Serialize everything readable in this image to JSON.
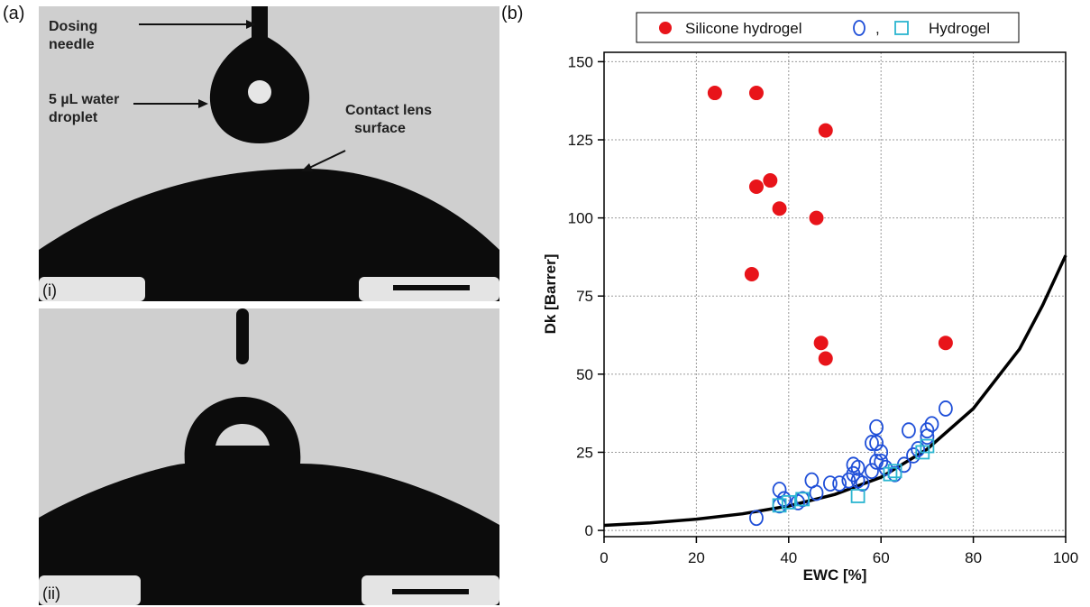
{
  "panel_a": {
    "label": "(a)",
    "photo_i": {
      "sub_label": "(i)",
      "annotations": {
        "needle_line1": "Dosing",
        "needle_line2": "needle",
        "droplet_line1": "5 µL water",
        "droplet_line2": "droplet",
        "surface_line1": "Contact lens",
        "surface_line2": "surface"
      }
    },
    "photo_ii": {
      "sub_label": "(ii)"
    }
  },
  "panel_b": {
    "label": "(b)"
  },
  "chart_data": {
    "type": "scatter",
    "xlabel": "EWC [%]",
    "ylabel": "Dk [Barrer]",
    "xlim": [
      0,
      100
    ],
    "ylim": [
      -2,
      153
    ],
    "x_ticks": [
      0,
      20,
      40,
      60,
      80,
      100
    ],
    "y_ticks": [
      0,
      25,
      50,
      75,
      100,
      125,
      150
    ],
    "grid": true,
    "legend": {
      "placement": "top",
      "entries": [
        "Silicone hydrogel",
        ",",
        "Hydrogel"
      ]
    },
    "colors": {
      "silicone": "#e8141a",
      "circle": "#1f4fd8",
      "square": "#2bb5d0",
      "curve": "#000000"
    },
    "series": [
      {
        "name": "Silicone hydrogel",
        "marker": "filled-circle",
        "x": [
          24,
          33,
          48,
          33,
          36,
          38,
          46,
          32,
          47,
          48,
          74
        ],
        "y": [
          140,
          140,
          128,
          110,
          112,
          103,
          100,
          82,
          60,
          55,
          60
        ]
      },
      {
        "marker": "open-circle",
        "x": [
          33,
          38,
          38,
          39,
          42,
          43,
          45,
          46,
          49,
          51,
          53,
          54,
          54,
          55,
          55,
          56,
          58,
          58,
          59,
          59,
          59,
          60,
          60,
          61,
          63,
          65,
          66,
          67,
          68,
          70,
          70,
          71,
          74
        ],
        "y": [
          4,
          8,
          13,
          10,
          9,
          10,
          16,
          12,
          15,
          15,
          16,
          21,
          18,
          20,
          16,
          15,
          28,
          19,
          22,
          33,
          28,
          22,
          25,
          20,
          18,
          21,
          32,
          24,
          26,
          30,
          32,
          34,
          39
        ]
      },
      {
        "name": "Hydrogel",
        "marker": "open-square",
        "x": [
          38,
          40,
          43,
          55,
          62,
          63,
          69,
          70
        ],
        "y": [
          8,
          9,
          10,
          11,
          18,
          19,
          25,
          27
        ]
      },
      {
        "marker": "line",
        "x": [
          0,
          10,
          20,
          30,
          40,
          50,
          60,
          70,
          80,
          90,
          95,
          100
        ],
        "y": [
          1.6,
          2.4,
          3.6,
          5.3,
          7.8,
          11.5,
          17,
          26,
          39,
          58,
          72,
          88
        ]
      }
    ]
  }
}
